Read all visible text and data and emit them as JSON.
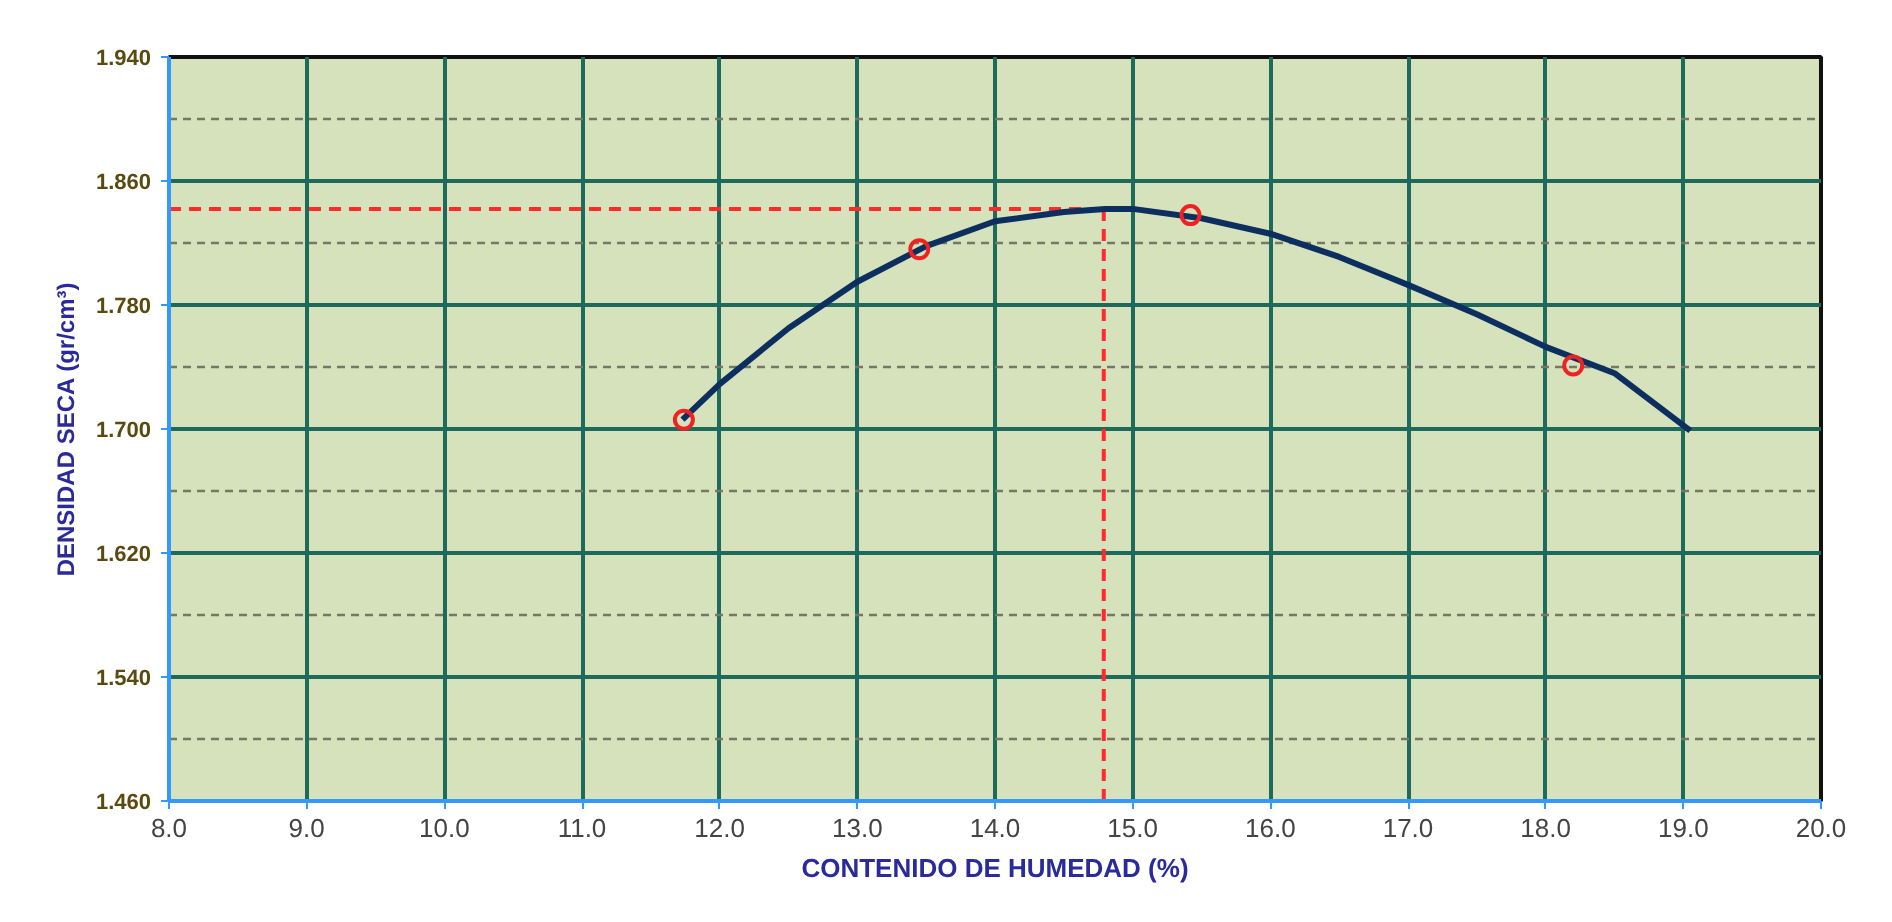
{
  "chart_data": {
    "type": "line",
    "xlabel": "CONTENIDO DE HUMEDAD (%)",
    "ylabel": "DENSIDAD SECA (gr/cm³)",
    "xlim": [
      8.0,
      20.0
    ],
    "xticks": [
      {
        "value": 8,
        "label": "8.0"
      },
      {
        "value": 9,
        "label": "9.0"
      },
      {
        "value": 10,
        "label": "10.0"
      },
      {
        "value": 11,
        "label": "11.0"
      },
      {
        "value": 12,
        "label": "12.0"
      },
      {
        "value": 13,
        "label": "13.0"
      },
      {
        "value": 14,
        "label": "14.0"
      },
      {
        "value": 15,
        "label": "15.0"
      },
      {
        "value": 16,
        "label": "16.0"
      },
      {
        "value": 17,
        "label": "17.0"
      },
      {
        "value": 18,
        "label": "18.0"
      },
      {
        "value": 19,
        "label": "19.0"
      },
      {
        "value": 20,
        "label": "20.0"
      }
    ],
    "ylim": [
      1.46,
      1.94
    ],
    "yticks": [
      {
        "value": 1.46,
        "label": "1.460"
      },
      {
        "value": 1.5,
        "label": null
      },
      {
        "value": 1.54,
        "label": "1.540"
      },
      {
        "value": 1.58,
        "label": null
      },
      {
        "value": 1.62,
        "label": "1.620"
      },
      {
        "value": 1.66,
        "label": null
      },
      {
        "value": 1.7,
        "label": "1.700"
      },
      {
        "value": 1.74,
        "label": null
      },
      {
        "value": 1.78,
        "label": "1.780"
      },
      {
        "value": 1.82,
        "label": null
      },
      {
        "value": 1.86,
        "label": "1.860"
      },
      {
        "value": 1.9,
        "label": null
      },
      {
        "value": 1.94,
        "label": "1.940"
      }
    ],
    "grid": true,
    "series": [
      {
        "color": "#0d2f5f",
        "marker": "none",
        "x": [
          11.73,
          12.0,
          12.5,
          13.0,
          13.5,
          14.0,
          14.5,
          14.8,
          15.0,
          15.5,
          16.0,
          16.5,
          17.0,
          17.5,
          18.0,
          18.5,
          19.05
        ],
        "values": [
          1.706,
          1.729,
          1.765,
          1.795,
          1.818,
          1.834,
          1.84,
          1.842,
          1.842,
          1.836,
          1.826,
          1.811,
          1.793,
          1.774,
          1.753,
          1.736,
          1.699
        ]
      },
      {
        "type": "scatter",
        "color": "#ee2222",
        "marker": "circle",
        "x": [
          11.74,
          13.45,
          15.42,
          18.2
        ],
        "values": [
          1.706,
          1.816,
          1.838,
          1.741
        ]
      }
    ],
    "ref_lines": [
      {
        "axis": "y",
        "value": 1.842,
        "color": "#ff2a2a",
        "line_style": "dashed"
      },
      {
        "axis": "x",
        "value": 14.79,
        "color": "#ff2a2a",
        "line_style": "dashed"
      }
    ]
  }
}
